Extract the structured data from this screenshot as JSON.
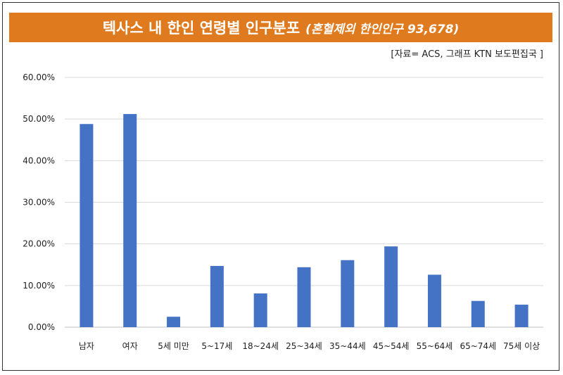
{
  "header": {
    "title": "텍사스 내 한인 연령별 인구분포",
    "subtitle": "(혼혈제외 한인인구 93,678)",
    "source": "[자료= ACS, 그래프 KTN 보도편집국 ]"
  },
  "colors": {
    "title_bg": "#e07a1f",
    "bar": "#4472c4",
    "grid": "#d9d9d9"
  },
  "chart_data": {
    "type": "bar",
    "title": "텍사스 내 한인 연령별 인구분포",
    "xlabel": "",
    "ylabel": "",
    "categories": [
      "남자",
      "여자",
      "5세 미만",
      "5~17세",
      "18~24세",
      "25~34세",
      "35~44세",
      "45~54세",
      "55~64세",
      "65~74세",
      "75세 이상"
    ],
    "values": [
      48.8,
      51.2,
      2.5,
      14.7,
      8.1,
      14.4,
      16.1,
      19.4,
      12.6,
      6.3,
      5.4
    ],
    "ylim": [
      0,
      60
    ],
    "yticks": [
      "0.00%",
      "10.00%",
      "20.00%",
      "30.00%",
      "40.00%",
      "50.00%",
      "60.00%"
    ],
    "grid": true,
    "legend": "none"
  }
}
